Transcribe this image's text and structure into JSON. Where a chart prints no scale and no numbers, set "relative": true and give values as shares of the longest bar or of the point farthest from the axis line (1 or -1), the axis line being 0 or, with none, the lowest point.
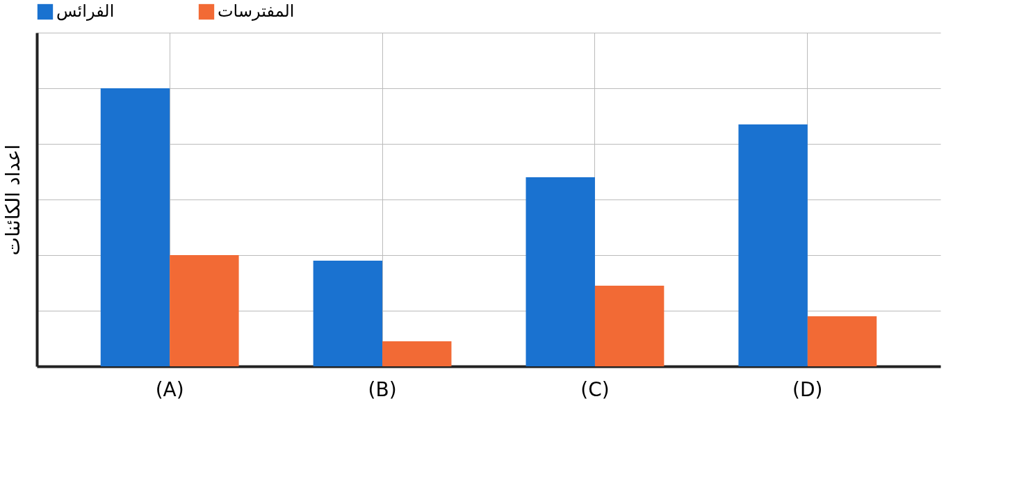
{
  "chart_data": {
    "type": "bar",
    "relative": true,
    "ylabel": "اعداد الكائنات",
    "categories": [
      "(A)",
      "(B)",
      "(C)",
      "(D)"
    ],
    "series": [
      {
        "name": "الفرائس",
        "color": "#1a72d0",
        "values": [
          1,
          0.38,
          0.68,
          0.87
        ]
      },
      {
        "name": "المفترسات",
        "color": "#f26a35",
        "values": [
          0.4,
          0.09,
          0.29,
          0.18
        ]
      }
    ],
    "grid": true,
    "legend": "top"
  }
}
